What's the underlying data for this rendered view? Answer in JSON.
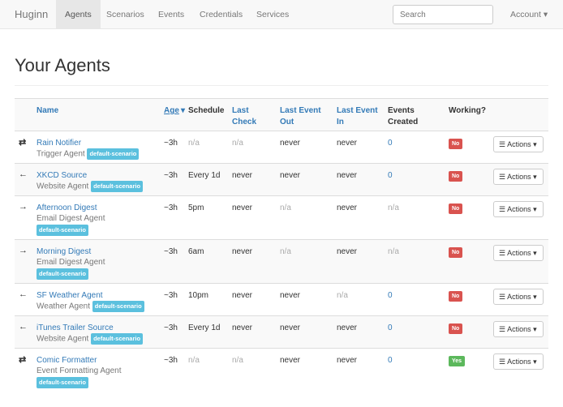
{
  "nav": {
    "brand": "Huginn",
    "items": [
      "Agents",
      "Scenarios",
      "Events",
      "Credentials",
      "Services"
    ],
    "search_placeholder": "Search",
    "account": "Account ▾"
  },
  "page_title": "Your Agents",
  "columns": {
    "name": "Name",
    "age": "Age",
    "sort_indicator": "▾",
    "schedule": "Schedule",
    "last_check": "Last Check",
    "last_event_out": "Last Event Out",
    "last_event_in": "Last Event In",
    "events_created": "Events Created",
    "working": "Working?"
  },
  "actions_label": "Actions ▾",
  "agents": [
    {
      "icon": "exchange-icon",
      "glyph": "⇄",
      "name": "Rain Notifier",
      "type": "Trigger Agent",
      "scenario": "default-scenario",
      "age": "~3h",
      "schedule": "n/a",
      "last_check": "n/a",
      "last_event_out": "never",
      "last_event_in": "never",
      "events": "0",
      "working": "No"
    },
    {
      "icon": "arrow-left-icon",
      "glyph": "←",
      "name": "XKCD Source",
      "type": "Website Agent",
      "scenario": "default-scenario",
      "age": "~3h",
      "schedule": "Every 1d",
      "last_check": "never",
      "last_event_out": "never",
      "last_event_in": "never",
      "events": "0",
      "working": "No"
    },
    {
      "icon": "arrow-right-icon",
      "glyph": "→",
      "name": "Afternoon Digest",
      "type": "Email Digest Agent",
      "scenario": "default-scenario",
      "age": "~3h",
      "schedule": "5pm",
      "last_check": "never",
      "last_event_out": "n/a",
      "last_event_in": "never",
      "events": "n/a",
      "working": "No"
    },
    {
      "icon": "arrow-right-icon",
      "glyph": "→",
      "name": "Morning Digest",
      "type": "Email Digest Agent",
      "scenario": "default-scenario",
      "age": "~3h",
      "schedule": "6am",
      "last_check": "never",
      "last_event_out": "n/a",
      "last_event_in": "never",
      "events": "n/a",
      "working": "No"
    },
    {
      "icon": "arrow-left-icon",
      "glyph": "←",
      "name": "SF Weather Agent",
      "type": "Weather Agent",
      "scenario": "default-scenario",
      "age": "~3h",
      "schedule": "10pm",
      "last_check": "never",
      "last_event_out": "never",
      "last_event_in": "n/a",
      "events": "0",
      "working": "No"
    },
    {
      "icon": "arrow-left-icon",
      "glyph": "←",
      "name": "iTunes Trailer Source",
      "type": "Website Agent",
      "scenario": "default-scenario",
      "age": "~3h",
      "schedule": "Every 1d",
      "last_check": "never",
      "last_event_out": "never",
      "last_event_in": "never",
      "events": "0",
      "working": "No"
    },
    {
      "icon": "exchange-icon",
      "glyph": "⇄",
      "name": "Comic Formatter",
      "type": "Event Formatting Agent",
      "scenario": "default-scenario",
      "age": "~3h",
      "schedule": "n/a",
      "last_check": "n/a",
      "last_event_out": "never",
      "last_event_in": "never",
      "events": "0",
      "working": "Yes"
    }
  ]
}
